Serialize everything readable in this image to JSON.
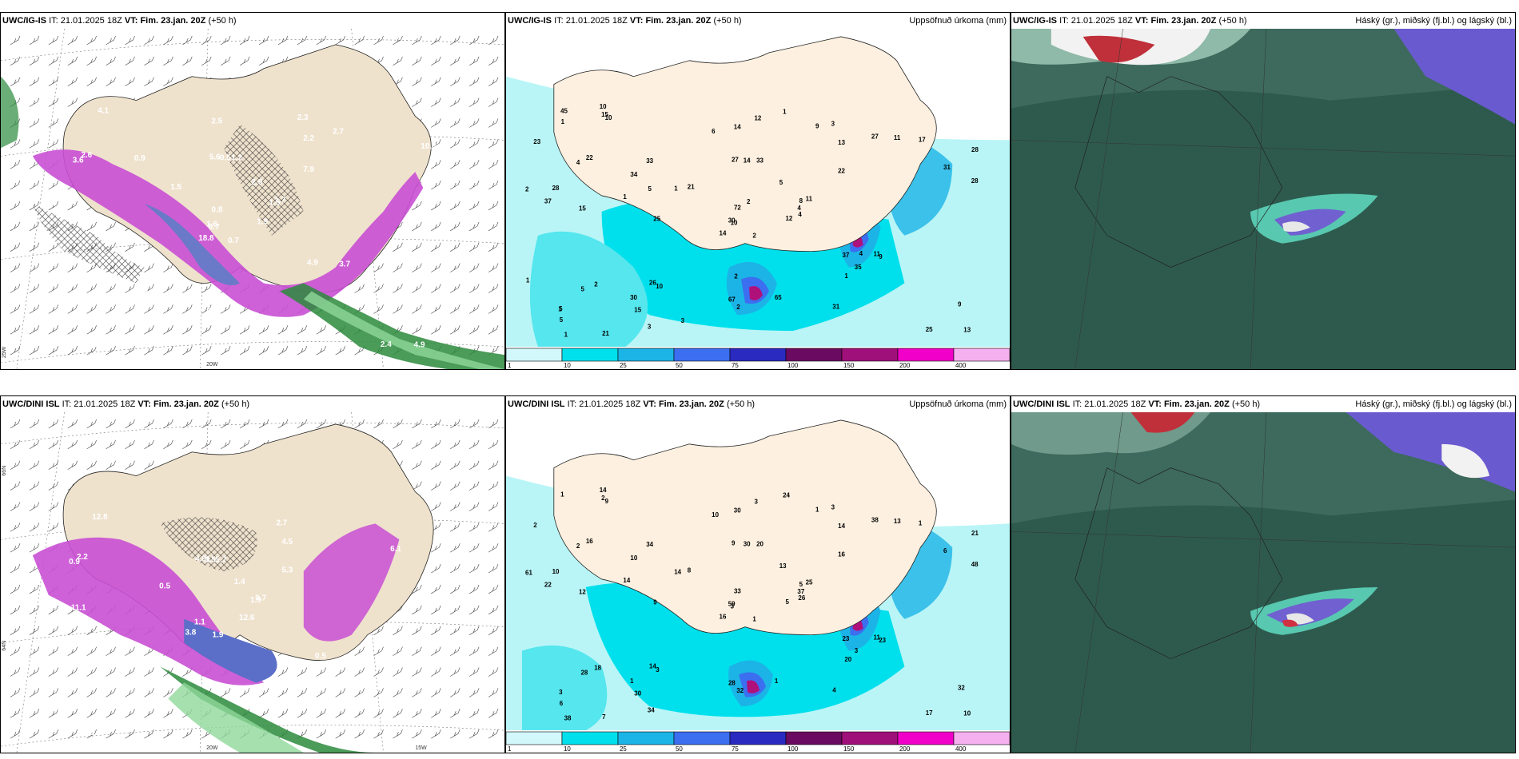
{
  "panels": [
    {
      "model": "UWC/IG-IS",
      "it_label": "IT:",
      "it": "21.01.2025 18Z",
      "vt_label": "VT:",
      "vt": "Fim. 23.jan. 20Z",
      "lead": "(+50 h)",
      "title": ""
    },
    {
      "model": "UWC/IG-IS",
      "it_label": "IT:",
      "it": "21.01.2025 18Z",
      "vt_label": "VT:",
      "vt": "Fim. 23.jan. 20Z",
      "lead": "(+50 h)",
      "title": "Uppsöfnuð úrkoma (mm)"
    },
    {
      "model": "UWC/IG-IS",
      "it_label": "IT:",
      "it": "21.01.2025 18Z",
      "vt_label": "VT:",
      "vt": "Fim. 23.jan. 20Z",
      "lead": "(+50 h)",
      "title": "Háský (gr.), miðský (fj.bl.) og lágský (bl.)"
    },
    {
      "model": "UWC/DINI ISL",
      "it_label": "IT:",
      "it": "21.01.2025 18Z",
      "vt_label": "VT:",
      "vt": "Fim. 23.jan. 20Z",
      "lead": "(+50 h)",
      "title": ""
    },
    {
      "model": "UWC/DINI ISL",
      "it_label": "IT:",
      "it": "21.01.2025 18Z",
      "vt_label": "VT:",
      "vt": "Fim. 23.jan. 20Z",
      "lead": "(+50 h)",
      "title": "Uppsöfnuð úrkoma (mm)"
    },
    {
      "model": "UWC/DINI ISL",
      "it_label": "IT:",
      "it": "21.01.2025 18Z",
      "vt_label": "VT:",
      "vt": "Fim. 23.jan. 20Z",
      "lead": "(+50 h)",
      "title": "Háský (gr.), miðský (fj.bl.) og lágský (bl.)"
    }
  ],
  "axis_labels": {
    "lon_20w": "20W",
    "lon_15w": "15W",
    "lat_25w": "25W",
    "lat_64n": "64N",
    "lat_66n": "66N"
  },
  "colorbar": {
    "ticks": [
      "1",
      "10",
      "25",
      "50",
      "75",
      "100",
      "150",
      "200",
      "400"
    ],
    "colors": [
      "#d2f8fb",
      "#00e0ec",
      "#1cb4e6",
      "#3c6ef0",
      "#2a2ac0",
      "#6a0a60",
      "#a0107a",
      "#f000c8",
      "#f5b0f0"
    ]
  },
  "precip_labels_top": [
    "2",
    "4",
    "10",
    "5",
    "8",
    "10",
    "3",
    "33",
    "13",
    "12",
    "10",
    "13",
    "15",
    "28",
    "14",
    "22",
    "21",
    "27",
    "5",
    "2",
    "21",
    "5",
    "15",
    "14",
    "11",
    "9",
    "22",
    "14",
    "37",
    "37",
    "28",
    "30",
    "67",
    "72",
    "33",
    "27",
    "26",
    "25",
    "9",
    "11",
    "1",
    "1",
    "1",
    "1",
    "3",
    "2",
    "4",
    "1",
    "2",
    "4",
    "5",
    "31",
    "23",
    "35",
    "31",
    "30",
    "15",
    "45",
    "65",
    "17",
    "12",
    "25",
    "28",
    "34",
    "11",
    "10",
    "9",
    "6",
    "2",
    "1",
    "2",
    "3",
    "4",
    "5",
    "1",
    "1"
  ],
  "precip_labels_bottom": [
    "1",
    "2",
    "3",
    "3",
    "5",
    "3",
    "3",
    "20",
    "14",
    "5",
    "9",
    "10",
    "12",
    "21",
    "16",
    "16",
    "7",
    "9",
    "13",
    "18",
    "8",
    "6",
    "30",
    "30",
    "25",
    "23",
    "16",
    "30",
    "22",
    "23",
    "48",
    "59",
    "28",
    "33",
    "34",
    "38",
    "14",
    "17",
    "32",
    "11",
    "24",
    "14",
    "14",
    "20",
    "34",
    "61",
    "37",
    "38",
    "32",
    "26",
    "28",
    "6",
    "2",
    "3",
    "4",
    "1",
    "2",
    "1",
    "1",
    "1",
    "3",
    "9",
    "10",
    "10",
    "13",
    "14",
    "1",
    "10"
  ],
  "temp_labels_top": [
    "0.7",
    "3.6",
    "0.7",
    "0.5",
    "1.5",
    "1.5",
    "2.3",
    "1.2",
    "2.2",
    "1.9",
    "4.1",
    "4.9",
    "5.3",
    "10.8",
    "18.8",
    "7.9",
    "3.7",
    "5.6",
    "2.9",
    "2.2",
    "1.5",
    "0.7",
    "0.5",
    "0.5",
    "1.7",
    "3.7",
    "2.6",
    "2.5",
    "2.6",
    "4.9",
    "0.7",
    "1.6",
    "0.3",
    "0.8",
    "0.9",
    "2.7",
    "1.8",
    "2.4"
  ],
  "temp_labels_bottom": [
    "1.9",
    "0.9",
    "1.1",
    "1.7",
    "1.9",
    "2.6",
    "2.7",
    "5.7",
    "4.5",
    "12.6",
    "12.8",
    "15.3",
    "11.1",
    "6.1",
    "3.8",
    "5.3",
    "3.4",
    "4.81",
    "1.4",
    "1.5",
    "0.5",
    "2.3",
    "1.9",
    "1.5",
    "0.7",
    "0.5",
    "2.2"
  ]
}
